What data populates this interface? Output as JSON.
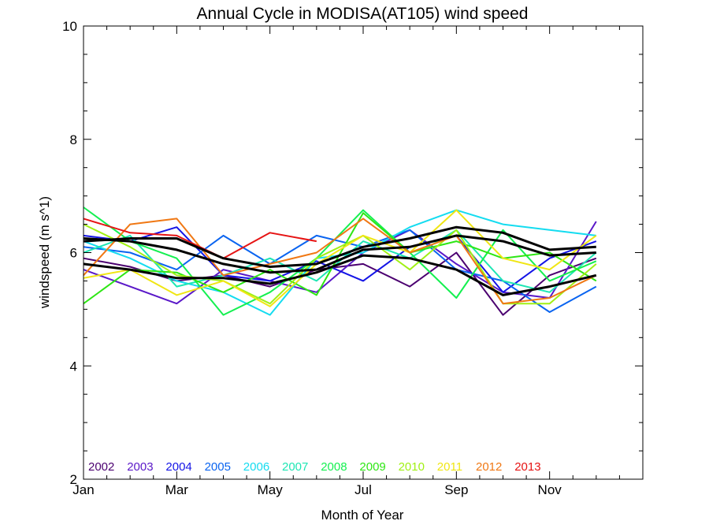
{
  "chart_data": {
    "type": "line",
    "title": "Annual Cycle in MODISA(AT105) wind speed",
    "xlabel": "Month of Year",
    "ylabel": "windspeed (m s^1)",
    "xlim": [
      1,
      13
    ],
    "ylim": [
      2,
      10
    ],
    "x": [
      1,
      2,
      3,
      4,
      5,
      6,
      7,
      8,
      9,
      10,
      11,
      12
    ],
    "x_tick_labels": [
      {
        "x": 1,
        "label": "Jan"
      },
      {
        "x": 3,
        "label": "Mar"
      },
      {
        "x": 5,
        "label": "May"
      },
      {
        "x": 7,
        "label": "Jul"
      },
      {
        "x": 9,
        "label": "Sep"
      },
      {
        "x": 11,
        "label": "Nov"
      }
    ],
    "y_ticks": [
      2,
      4,
      6,
      8,
      10
    ],
    "grid": false,
    "legend_position": "bottom-left",
    "series": [
      {
        "name": "2002",
        "color": "#4b0070",
        "values": [
          5.9,
          5.75,
          5.5,
          5.6,
          5.4,
          5.7,
          5.8,
          5.4,
          6.0,
          4.9,
          5.6,
          5.9
        ]
      },
      {
        "name": "2003",
        "color": "#5a18c8",
        "values": [
          5.7,
          5.4,
          5.1,
          5.7,
          5.5,
          5.3,
          6.0,
          6.4,
          5.8,
          5.3,
          5.2,
          6.55
        ]
      },
      {
        "name": "2004",
        "color": "#1414e6",
        "values": [
          6.3,
          6.2,
          6.45,
          5.6,
          5.5,
          5.85,
          5.5,
          6.1,
          6.3,
          5.3,
          5.9,
          6.2
        ]
      },
      {
        "name": "2005",
        "color": "#0a64f0",
        "values": [
          6.1,
          6.0,
          5.7,
          6.3,
          5.8,
          6.3,
          6.1,
          6.4,
          5.7,
          5.5,
          4.95,
          5.4
        ]
      },
      {
        "name": "2006",
        "color": "#14dcf0",
        "values": [
          6.2,
          5.9,
          5.5,
          5.3,
          4.9,
          5.9,
          6.0,
          6.45,
          6.75,
          6.5,
          6.4,
          6.3
        ]
      },
      {
        "name": "2007",
        "color": "#1ee6b4",
        "values": [
          6.0,
          6.3,
          5.4,
          5.6,
          5.9,
          5.5,
          6.2,
          5.9,
          6.4,
          5.5,
          5.3,
          6.0
        ]
      },
      {
        "name": "2008",
        "color": "#14f050",
        "values": [
          6.8,
          6.2,
          5.9,
          4.9,
          5.3,
          5.9,
          6.75,
          6.0,
          5.2,
          6.4,
          5.5,
          5.85
        ]
      },
      {
        "name": "2009",
        "color": "#2ee614",
        "values": [
          5.1,
          5.7,
          5.65,
          5.3,
          5.7,
          5.25,
          6.7,
          6.0,
          6.2,
          5.9,
          6.0,
          5.5
        ]
      },
      {
        "name": "2010",
        "color": "#a0f014",
        "values": [
          6.5,
          6.1,
          5.6,
          5.5,
          5.1,
          5.9,
          6.3,
          5.7,
          6.4,
          5.1,
          5.1,
          5.8
        ]
      },
      {
        "name": "2011",
        "color": "#f0e614",
        "values": [
          5.55,
          5.7,
          5.25,
          5.5,
          5.05,
          5.8,
          6.3,
          6.0,
          6.75,
          5.9,
          5.7,
          6.3
        ]
      },
      {
        "name": "2012",
        "color": "#f07814",
        "values": [
          5.6,
          6.5,
          6.6,
          5.6,
          5.8,
          6.0,
          6.6,
          6.0,
          6.3,
          5.1,
          5.2,
          5.6
        ]
      },
      {
        "name": "2013",
        "color": "#e61414",
        "values": [
          6.6,
          6.35,
          6.3,
          5.9,
          6.35,
          6.2,
          null,
          null,
          null,
          null,
          null,
          null
        ]
      }
    ],
    "stat_series": [
      {
        "color": "#000000",
        "values": [
          6.25,
          6.2,
          6.05,
          5.8,
          5.65,
          5.7,
          6.05,
          6.1,
          6.3,
          6.2,
          5.95,
          6.0
        ]
      },
      {
        "color": "#000000",
        "values": [
          5.8,
          5.7,
          5.55,
          5.55,
          5.45,
          5.65,
          5.95,
          5.9,
          5.7,
          5.25,
          5.4,
          5.6
        ]
      },
      {
        "color": "#000000",
        "values": [
          6.2,
          6.25,
          6.25,
          5.9,
          5.75,
          5.8,
          6.1,
          6.25,
          6.45,
          6.35,
          6.05,
          6.1
        ]
      }
    ]
  }
}
